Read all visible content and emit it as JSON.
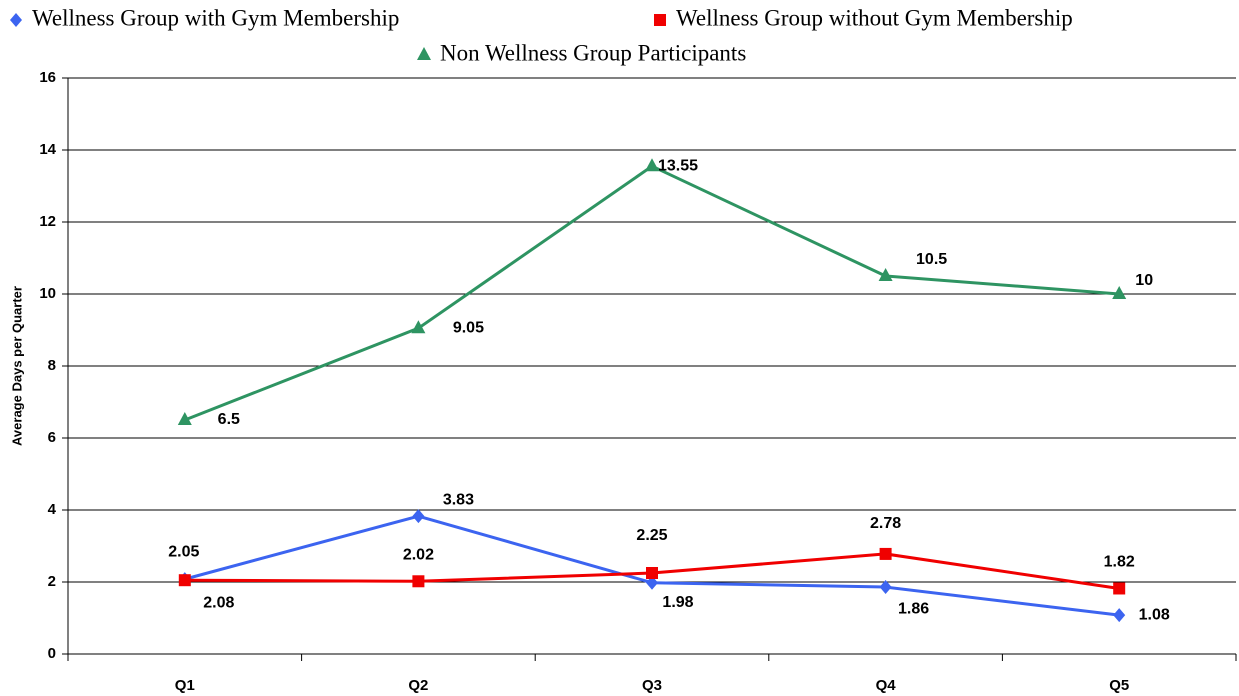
{
  "chart_data": {
    "type": "line",
    "y_label": "Average Days per Quarter",
    "categories": [
      "Q1",
      "Q2",
      "Q3",
      "Q4",
      "Q5"
    ],
    "series": [
      {
        "name": "Wellness Group with Gym Membership",
        "color": "#3c64f0",
        "marker": "diamond",
        "values": [
          2.08,
          3.83,
          1.98,
          1.86,
          1.08
        ]
      },
      {
        "name": "Wellness Group without Gym Membership",
        "color": "#f00000",
        "marker": "square",
        "values": [
          2.05,
          2.02,
          2.25,
          2.78,
          1.82
        ]
      },
      {
        "name": "Non Wellness Group Participants",
        "color": "#2e9462",
        "marker": "triangle",
        "values": [
          6.5,
          9.05,
          13.55,
          10.5,
          10
        ]
      }
    ],
    "ylim": [
      0,
      16
    ],
    "yticks": [
      0,
      2,
      4,
      6,
      8,
      10,
      12,
      14,
      16
    ],
    "grid": true,
    "legend": "top"
  }
}
